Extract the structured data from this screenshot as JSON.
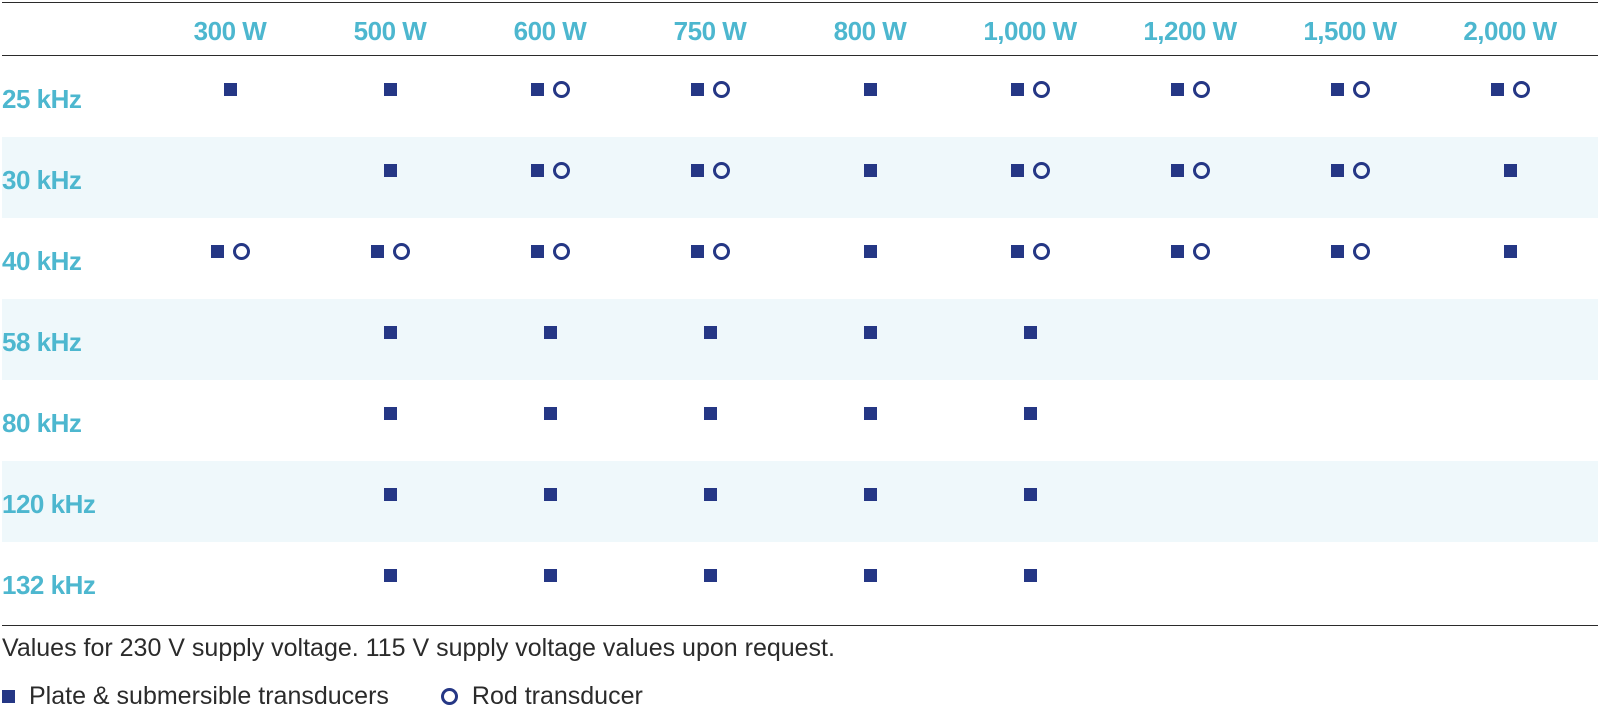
{
  "table": {
    "columns": [
      "300 W",
      "500 W",
      "600 W",
      "750 W",
      "800 W",
      "1,000 W",
      "1,200 W",
      "1,500 W",
      "2,000 W"
    ],
    "rows": [
      {
        "label": "25 kHz",
        "cells": [
          "plate",
          "plate",
          "both",
          "both",
          "plate",
          "both",
          "both",
          "both",
          "both"
        ]
      },
      {
        "label": "30 kHz",
        "cells": [
          "",
          "plate",
          "both",
          "both",
          "plate",
          "both",
          "both",
          "both",
          "plate"
        ]
      },
      {
        "label": "40 kHz",
        "cells": [
          "both",
          "both",
          "both",
          "both",
          "plate",
          "both",
          "both",
          "both",
          "plate"
        ]
      },
      {
        "label": "58 kHz",
        "cells": [
          "",
          "plate",
          "plate",
          "plate",
          "plate",
          "plate",
          "",
          "",
          ""
        ]
      },
      {
        "label": "80 kHz",
        "cells": [
          "",
          "plate",
          "plate",
          "plate",
          "plate",
          "plate",
          "",
          "",
          ""
        ]
      },
      {
        "label": "120 kHz",
        "cells": [
          "",
          "plate",
          "plate",
          "plate",
          "plate",
          "plate",
          "",
          "",
          ""
        ]
      },
      {
        "label": "132 kHz",
        "cells": [
          "",
          "plate",
          "plate",
          "plate",
          "plate",
          "plate",
          "",
          "",
          ""
        ]
      }
    ]
  },
  "footnote": "Values for 230 V supply voltage. 115 V supply voltage values upon request.",
  "legend": {
    "plate_label": "Plate & submersible transducers",
    "rod_label": "Rod transducer"
  },
  "colors": {
    "header_text": "#4db7cf",
    "marker": "#253785",
    "row_shade": "#eff8fb"
  },
  "icons": {
    "plate": "filled-square-icon",
    "rod": "ring-icon"
  }
}
